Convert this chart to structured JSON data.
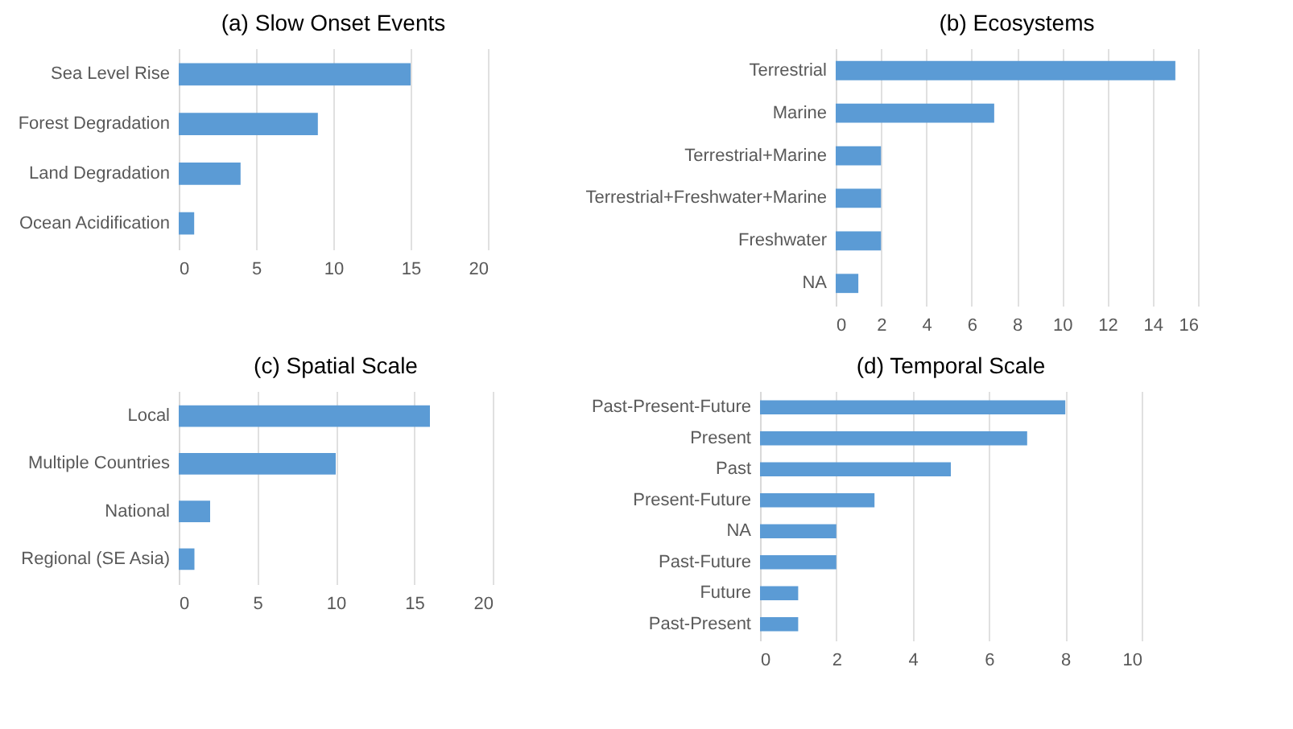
{
  "chart_data": [
    {
      "type": "bar",
      "orientation": "horizontal",
      "title": "(a) Slow Onset Events",
      "categories": [
        "Sea Level Rise",
        "Forest Degradation",
        "Land Degradation",
        "Ocean Acidification"
      ],
      "values": [
        15,
        9,
        4,
        1
      ],
      "color": "#5b9bd5",
      "xlim": [
        0,
        20
      ],
      "xticks": [
        0,
        5,
        10,
        15,
        20
      ],
      "grid": "x"
    },
    {
      "type": "bar",
      "orientation": "horizontal",
      "title": "(b) Ecosystems",
      "categories": [
        "Terrestrial",
        "Marine",
        "Terrestrial+Marine",
        "Terrestrial+Freshwater+Marine",
        "Freshwater",
        "NA"
      ],
      "values": [
        15,
        7,
        2,
        2,
        2,
        1
      ],
      "color": "#5b9bd5",
      "xlim": [
        0,
        16
      ],
      "xticks": [
        0,
        2,
        4,
        6,
        8,
        10,
        12,
        14,
        16
      ],
      "grid": "x"
    },
    {
      "type": "bar",
      "orientation": "horizontal",
      "title": "(c) Spatial Scale",
      "categories": [
        "Local",
        "Multiple Countries",
        "National",
        "Regional (SE Asia)"
      ],
      "values": [
        16,
        10,
        2,
        1
      ],
      "color": "#5b9bd5",
      "xlim": [
        0,
        20
      ],
      "xticks": [
        0,
        5,
        10,
        15,
        20
      ],
      "grid": "x"
    },
    {
      "type": "bar",
      "orientation": "horizontal",
      "title": "(d) Temporal Scale",
      "categories": [
        "Past-Present-Future",
        "Present",
        "Past",
        "Present-Future",
        "NA",
        "Past-Future",
        "Future",
        "Past-Present"
      ],
      "values": [
        8,
        7,
        5,
        3,
        2,
        2,
        1,
        1
      ],
      "color": "#5b9bd5",
      "xlim": [
        0,
        10
      ],
      "xticks": [
        0,
        2,
        4,
        6,
        8,
        10
      ],
      "grid": "x"
    }
  ]
}
